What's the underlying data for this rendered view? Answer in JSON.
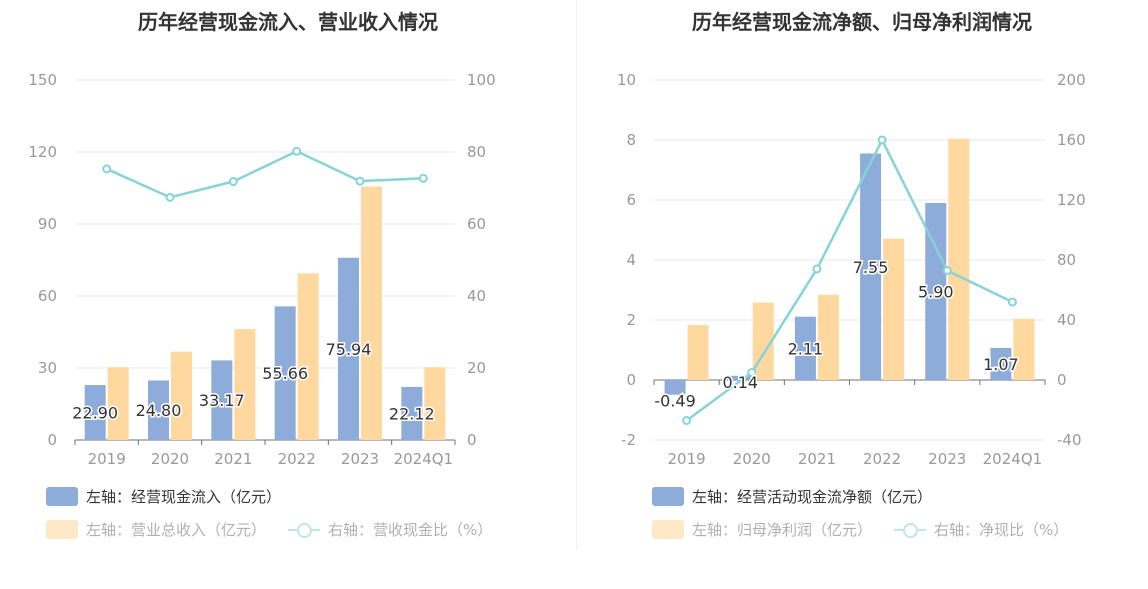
{
  "colors": {
    "cash_inflow": "#8eacd9",
    "revenue": "#fed89e",
    "ratio_line": "#86d3d8",
    "axis_text": "#999999",
    "grid": "#e6e9f2"
  },
  "chart_data": [
    {
      "type": "bar",
      "title": "历年经营现金流入、营业收入情况",
      "categories": [
        "2019",
        "2020",
        "2021",
        "2022",
        "2023",
        "2024Q1"
      ],
      "y_left": {
        "ticks": [
          "0",
          "30",
          "60",
          "90",
          "120",
          "150"
        ],
        "ylim": [
          0,
          150
        ]
      },
      "y_right": {
        "ticks": [
          "0",
          "20",
          "40",
          "60",
          "80",
          "100"
        ],
        "ylim": [
          0,
          100
        ]
      },
      "grid": true,
      "legend_position": "bottom-left",
      "series": [
        {
          "name": "左轴：经营现金流入（亿元）",
          "axis": "left",
          "kind": "bar",
          "values": [
            22.9,
            24.8,
            33.17,
            55.66,
            75.94,
            22.12
          ],
          "labels": [
            "22.90",
            "24.80",
            "33.17",
            "55.66",
            "75.94",
            "22.12"
          ]
        },
        {
          "name": "左轴：营业总收入（亿元）",
          "axis": "left",
          "kind": "bar",
          "values": [
            30.3,
            36.8,
            46.2,
            69.4,
            105.6,
            30.3
          ]
        },
        {
          "name": "右轴：营收现金比（%）",
          "axis": "right",
          "kind": "line",
          "values": [
            75.3,
            67.4,
            71.8,
            80.2,
            71.9,
            72.7
          ]
        }
      ]
    },
    {
      "type": "bar",
      "title": "历年经营现金流净额、归母净利润情况",
      "categories": [
        "2019",
        "2020",
        "2021",
        "2022",
        "2023",
        "2024Q1"
      ],
      "y_left": {
        "ticks": [
          "-2",
          "0",
          "2",
          "4",
          "6",
          "8",
          "10"
        ],
        "ylim": [
          -2,
          10
        ]
      },
      "y_right": {
        "ticks": [
          "-40",
          "0",
          "40",
          "80",
          "120",
          "160",
          "200"
        ],
        "ylim": [
          -40,
          200
        ]
      },
      "grid": true,
      "legend_position": "bottom-left",
      "series": [
        {
          "name": "左轴：经营活动现金流净额（亿元）",
          "axis": "left",
          "kind": "bar",
          "values": [
            -0.49,
            0.14,
            2.11,
            7.55,
            5.9,
            1.07
          ],
          "labels": [
            "-0.49",
            "0.14",
            "2.11",
            "7.55",
            "5.90",
            "1.07"
          ]
        },
        {
          "name": "左轴：归母净利润（亿元）",
          "axis": "left",
          "kind": "bar",
          "values": [
            1.83,
            2.58,
            2.84,
            4.71,
            8.04,
            2.04
          ]
        },
        {
          "name": "右轴：净现比（%）",
          "axis": "right",
          "kind": "line",
          "values": [
            -27,
            5,
            74,
            160,
            73,
            52
          ]
        }
      ]
    }
  ]
}
